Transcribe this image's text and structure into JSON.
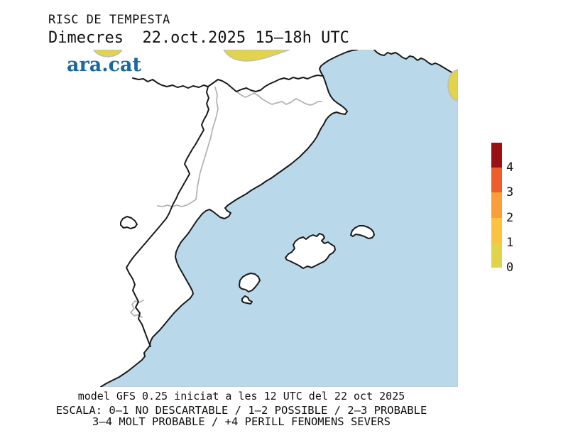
{
  "header": {
    "kicker": "RISC DE TEMPESTA",
    "title": "Dimecres  22.oct.2025 15–18h UTC",
    "logo": "ara.cat"
  },
  "map": {
    "sea_color": "#b9d8ea",
    "land_color": "#ffffff",
    "coast_color": "#1a1a1a",
    "province_border_color": "#b3b3b3",
    "frame_color": "#c4c4c4",
    "risk_patch_color": "#e2d44a",
    "risk_patch_outline": "#bdbdbd",
    "risk_areas": [
      {
        "name": "western-pyrenees",
        "level": "0–1"
      },
      {
        "name": "eastern-pyrenees",
        "level": "0–1"
      },
      {
        "name": "french-coast-edge",
        "level": "0–1"
      }
    ]
  },
  "colorbar": {
    "ticks_top_to_bottom": [
      "4",
      "3",
      "2",
      "1",
      "0"
    ],
    "segments_top_to_bottom": [
      {
        "range": "4+",
        "color": "#9a1115"
      },
      {
        "range": "3–4",
        "color": "#ee5e2a"
      },
      {
        "range": "2–3",
        "color": "#fb9e3a"
      },
      {
        "range": "1–2",
        "color": "#fdc33f"
      },
      {
        "range": "0–1",
        "color": "#e2d44a"
      }
    ]
  },
  "footer": {
    "model_line": "model GFS 0.25 iniciat a les 12 UTC del 22 oct 2025",
    "scale_line_1": "ESCALA: 0–1 NO DESCARTABLE / 1–2 POSSIBLE / 2–3 PROBABLE",
    "scale_line_2": "3–4 MOLT PROBABLE / +4 PERILL FENOMENS SEVERS"
  },
  "logo_color": "#17689d"
}
